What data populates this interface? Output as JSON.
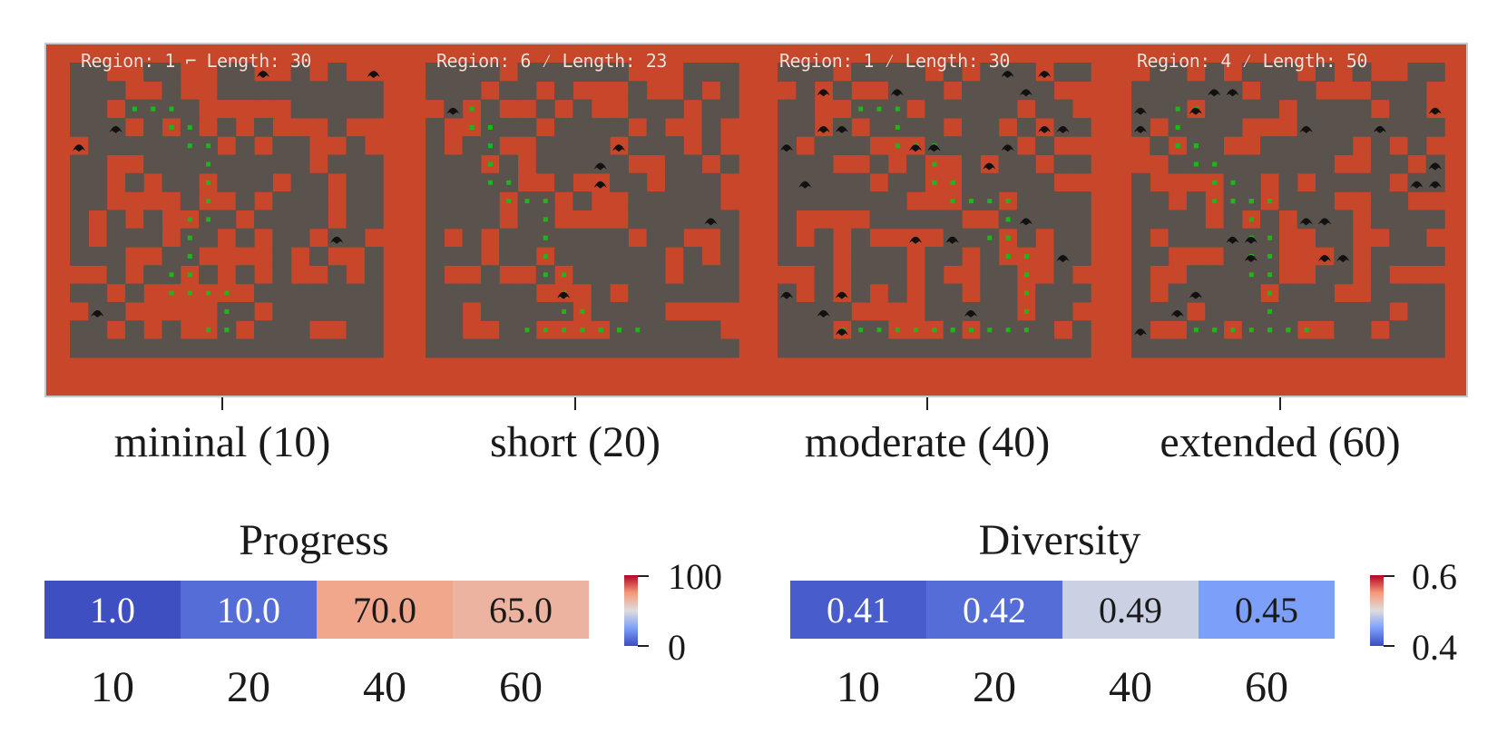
{
  "colors": {
    "wall": "#c8472b",
    "floor": "#5a524c",
    "path": "#1bb81b",
    "enemy": "#111111",
    "caption": "#f2e2d8"
  },
  "mazes": [
    {
      "caption": "Region: 1 ⌐ Length: 30",
      "label": "mininal (10)"
    },
    {
      "caption": "Region: 6 ⁄ Length: 23",
      "label": "short (20)"
    },
    {
      "caption": "Region: 1 ⁄ Length: 30",
      "label": "moderate (40)"
    },
    {
      "caption": "Region: 4 ⁄ Length: 50",
      "label": "extended (60)"
    }
  ],
  "chart_data": [
    {
      "type": "heatmap",
      "title": "Progress",
      "categories": [
        "10",
        "20",
        "40",
        "60"
      ],
      "values": [
        1.0,
        10.0,
        70.0,
        65.0
      ],
      "value_labels": [
        "1.0",
        "10.0",
        "70.0",
        "65.0"
      ],
      "colormap": "coolwarm",
      "vmin": 0,
      "vmax": 100,
      "colorbar_ticks": [
        "100",
        "0"
      ]
    },
    {
      "type": "heatmap",
      "title": "Diversity",
      "categories": [
        "10",
        "20",
        "40",
        "60"
      ],
      "values": [
        0.41,
        0.42,
        0.49,
        0.45
      ],
      "value_labels": [
        "0.41",
        "0.42",
        "0.49",
        "0.45"
      ],
      "colormap": "coolwarm",
      "vmin": 0.4,
      "vmax": 0.6,
      "colorbar_ticks": [
        "0.6",
        "0.4"
      ]
    }
  ]
}
